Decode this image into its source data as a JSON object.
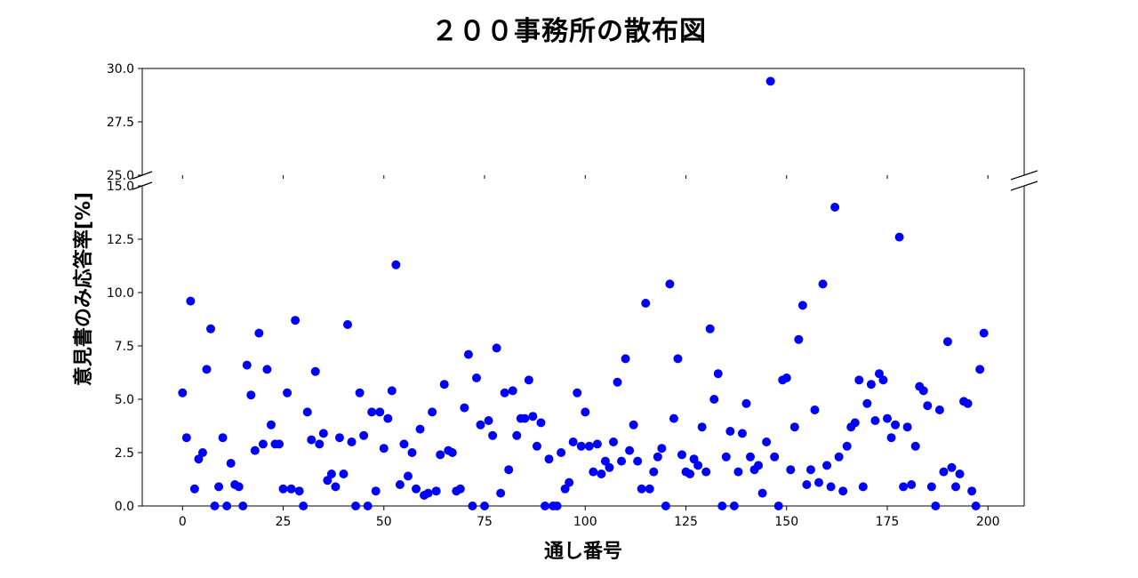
{
  "chart_data": {
    "type": "scatter",
    "title": "２００事務所の散布図",
    "xlabel": "通し番号",
    "ylabel": "意見書のみ応答率[%]",
    "xlim": [
      -10,
      209
    ],
    "xticks": [
      0,
      25,
      50,
      75,
      100,
      125,
      150,
      175,
      200
    ],
    "broken_y_axis": true,
    "upper_panel": {
      "ylim": [
        25.0,
        30.0
      ],
      "yticks": [
        "25.0",
        "27.5",
        "30.0"
      ]
    },
    "lower_panel": {
      "ylim": [
        0.0,
        15.0
      ],
      "yticks": [
        "0.0",
        "2.5",
        "5.0",
        "7.5",
        "10.0",
        "12.5",
        "15.0"
      ]
    },
    "marker_color": "#0000ff",
    "grid": false,
    "x": [
      0,
      1,
      2,
      3,
      4,
      5,
      6,
      7,
      8,
      9,
      10,
      11,
      12,
      13,
      14,
      15,
      16,
      17,
      18,
      19,
      20,
      21,
      22,
      23,
      24,
      25,
      26,
      27,
      28,
      29,
      30,
      31,
      32,
      33,
      34,
      35,
      36,
      37,
      38,
      39,
      40,
      41,
      42,
      43,
      44,
      45,
      46,
      47,
      48,
      49,
      50,
      51,
      52,
      53,
      54,
      55,
      56,
      57,
      58,
      59,
      60,
      61,
      62,
      63,
      64,
      65,
      66,
      67,
      68,
      69,
      70,
      71,
      72,
      73,
      74,
      75,
      76,
      77,
      78,
      79,
      80,
      81,
      82,
      83,
      84,
      85,
      86,
      87,
      88,
      89,
      90,
      91,
      92,
      93,
      94,
      95,
      96,
      97,
      98,
      99,
      100,
      101,
      102,
      103,
      104,
      105,
      106,
      107,
      108,
      109,
      110,
      111,
      112,
      113,
      114,
      115,
      116,
      117,
      118,
      119,
      120,
      121,
      122,
      123,
      124,
      125,
      126,
      127,
      128,
      129,
      130,
      131,
      132,
      133,
      134,
      135,
      136,
      137,
      138,
      139,
      140,
      141,
      142,
      143,
      144,
      145,
      146,
      147,
      148,
      149,
      150,
      151,
      152,
      153,
      154,
      155,
      156,
      157,
      158,
      159,
      160,
      161,
      162,
      163,
      164,
      165,
      166,
      167,
      168,
      169,
      170,
      171,
      172,
      173,
      174,
      175,
      176,
      177,
      178,
      179,
      180,
      181,
      182,
      183,
      184,
      185,
      186,
      187,
      188,
      189,
      190,
      191,
      192,
      193,
      194,
      195,
      196,
      197,
      198,
      199
    ],
    "y": [
      5.3,
      3.2,
      9.6,
      0.8,
      2.2,
      2.5,
      6.4,
      8.3,
      0.0,
      0.9,
      3.2,
      0.0,
      2.0,
      1.0,
      0.9,
      0.0,
      6.6,
      5.2,
      2.6,
      8.1,
      2.9,
      6.4,
      3.8,
      2.9,
      2.9,
      0.8,
      5.3,
      0.8,
      8.7,
      0.7,
      0.0,
      4.4,
      3.1,
      6.3,
      2.9,
      3.4,
      1.2,
      1.5,
      0.9,
      3.2,
      1.5,
      8.5,
      3.0,
      0.0,
      5.3,
      3.3,
      0.0,
      4.4,
      0.7,
      4.4,
      2.7,
      4.1,
      5.4,
      11.3,
      1.0,
      2.9,
      1.4,
      2.5,
      0.8,
      3.6,
      0.5,
      0.6,
      4.4,
      0.7,
      2.4,
      5.7,
      2.6,
      2.5,
      0.7,
      0.8,
      4.6,
      7.1,
      0.0,
      6.0,
      3.8,
      0.0,
      4.0,
      3.3,
      7.4,
      0.6,
      5.3,
      1.7,
      5.4,
      3.3,
      4.1,
      4.1,
      5.9,
      4.2,
      2.8,
      3.9,
      0.0,
      2.2,
      0.0,
      0.0,
      2.5,
      0.8,
      1.1,
      3.0,
      5.3,
      2.8,
      4.4,
      2.8,
      1.6,
      2.9,
      1.5,
      2.1,
      1.8,
      3.0,
      5.8,
      2.1,
      6.9,
      2.6,
      3.8,
      2.1,
      0.8,
      9.5,
      0.8,
      1.6,
      2.3,
      2.7,
      0.0,
      10.4,
      4.1,
      6.9,
      2.4,
      1.6,
      1.5,
      2.2,
      1.9,
      3.7,
      1.6,
      8.3,
      5.0,
      6.2,
      0.0,
      2.3,
      3.5,
      0.0,
      1.6,
      3.4,
      4.8,
      2.3,
      1.7,
      1.9,
      0.6,
      3.0,
      29.4,
      2.3,
      0.0,
      5.9,
      6.0,
      1.7,
      3.7,
      7.8,
      9.4,
      1.0,
      1.7,
      4.5,
      1.1,
      10.4,
      1.9,
      0.9,
      14.0,
      2.3,
      0.7,
      2.8,
      3.7,
      3.9,
      5.9,
      0.9,
      4.8,
      5.7,
      4.0,
      6.2,
      5.9,
      4.1,
      3.2,
      3.8,
      12.6,
      0.9,
      3.7,
      1.0,
      2.8,
      5.6,
      5.4,
      4.7,
      0.9,
      0.0,
      4.5,
      1.6,
      7.7,
      1.8,
      0.9,
      1.5,
      4.9,
      4.8,
      0.7,
      0.0,
      6.4,
      8.1
    ]
  }
}
